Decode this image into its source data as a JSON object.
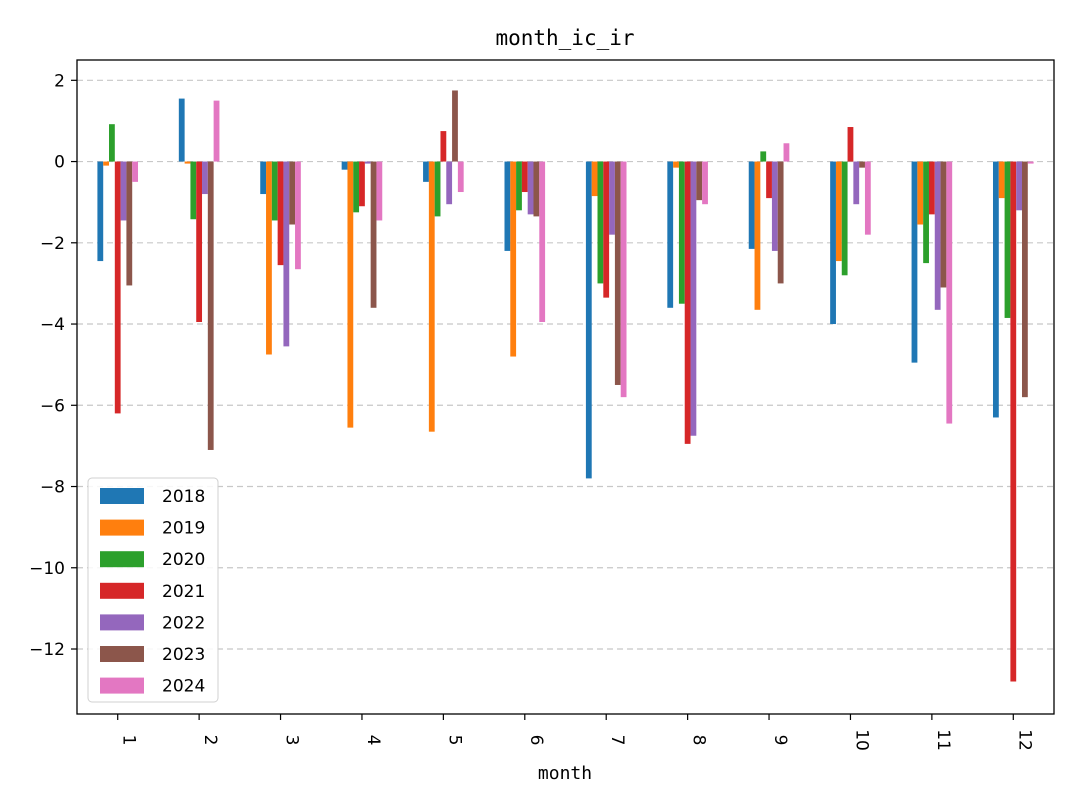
{
  "chart_data": {
    "type": "bar",
    "title": "month_ic_ir",
    "xlabel": "month",
    "ylabel": "",
    "ylim": [
      -13.6,
      2.5
    ],
    "yticks": [
      2,
      0,
      -2,
      -4,
      -6,
      -8,
      -10,
      -12
    ],
    "ytick_labels": [
      "2",
      "0",
      "−2",
      "−4",
      "−6",
      "−8",
      "−10",
      "−12"
    ],
    "grid": "horizontal-dashed",
    "legend_position": "lower-left",
    "categories": [
      "1",
      "2",
      "3",
      "4",
      "5",
      "6",
      "7",
      "8",
      "9",
      "10",
      "11",
      "12"
    ],
    "series": [
      {
        "name": "2018",
        "color": "#1f77b4",
        "values": [
          -2.45,
          1.55,
          -0.8,
          -0.2,
          -0.5,
          -2.2,
          -7.8,
          -3.6,
          -2.15,
          -4.0,
          -4.95,
          -6.3
        ]
      },
      {
        "name": "2019",
        "color": "#ff7f0e",
        "values": [
          -0.1,
          -0.05,
          -4.75,
          -6.55,
          -6.65,
          -4.8,
          -0.85,
          -0.15,
          -3.65,
          -2.45,
          -1.55,
          -0.9
        ]
      },
      {
        "name": "2020",
        "color": "#2ca02c",
        "values": [
          0.92,
          -1.42,
          -1.45,
          -1.25,
          -1.35,
          -1.2,
          -3.0,
          -3.5,
          0.25,
          -2.8,
          -2.5,
          -3.85
        ]
      },
      {
        "name": "2021",
        "color": "#d62728",
        "values": [
          -6.2,
          -3.95,
          -2.55,
          -1.1,
          0.75,
          -0.75,
          -3.35,
          -6.95,
          -0.9,
          0.85,
          -1.3,
          -12.8
        ]
      },
      {
        "name": "2022",
        "color": "#9467bd",
        "values": [
          -1.45,
          -0.8,
          -4.55,
          -0.05,
          -1.05,
          -1.3,
          -1.8,
          -6.75,
          -2.2,
          -1.05,
          -3.65,
          -1.2
        ]
      },
      {
        "name": "2023",
        "color": "#8c564b",
        "values": [
          -3.05,
          -7.1,
          -1.55,
          -3.6,
          1.75,
          -1.35,
          -5.5,
          -0.95,
          -3.0,
          -0.15,
          -3.1,
          -5.8
        ]
      },
      {
        "name": "2024",
        "color": "#e377c2",
        "values": [
          -0.5,
          1.5,
          -2.65,
          -1.45,
          -0.75,
          -3.95,
          -5.8,
          -1.05,
          0.45,
          -1.8,
          -6.45,
          -0.05
        ]
      }
    ]
  }
}
